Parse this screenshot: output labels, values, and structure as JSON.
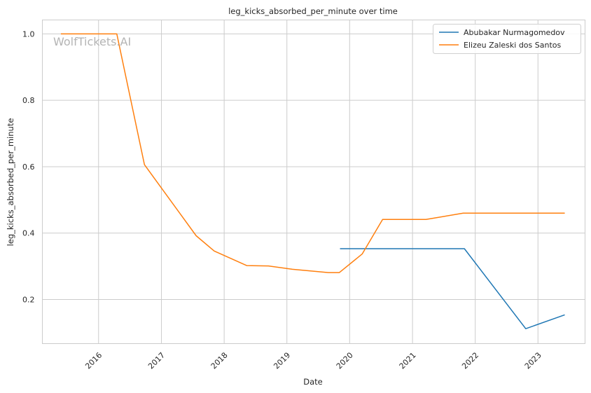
{
  "watermark": "WolfTickets.AI",
  "chart_data": {
    "type": "line",
    "title": "leg_kicks_absorbed_per_minute over time",
    "xlabel": "Date",
    "ylabel": "leg_kicks_absorbed_per_minute",
    "x_ticks": [
      "2016",
      "2017",
      "2018",
      "2019",
      "2020",
      "2021",
      "2022",
      "2023"
    ],
    "y_ticks": [
      "0.2",
      "0.4",
      "0.6",
      "0.8",
      "1.0"
    ],
    "xlim": [
      "2015-02-08",
      "2023-10-02"
    ],
    "ylim": [
      0.067,
      1.042
    ],
    "grid": true,
    "legend_position": "top-right",
    "series": [
      {
        "name": "Abubakar Nurmagomedov",
        "color": "#1f77b4",
        "points": [
          {
            "x": "2019-11-09",
            "y": 0.353
          },
          {
            "x": "2021-10-30",
            "y": 0.353
          },
          {
            "x": "2022-10-22",
            "y": 0.112
          },
          {
            "x": "2023-06-03",
            "y": 0.153
          }
        ]
      },
      {
        "name": "Elizeu Zaleski dos Santos",
        "color": "#ff7f0e",
        "points": [
          {
            "x": "2015-05-30",
            "y": 1.0
          },
          {
            "x": "2016-04-16",
            "y": 1.0
          },
          {
            "x": "2016-09-24",
            "y": 0.606
          },
          {
            "x": "2017-07-22",
            "y": 0.392
          },
          {
            "x": "2017-11-04",
            "y": 0.346
          },
          {
            "x": "2018-05-12",
            "y": 0.302
          },
          {
            "x": "2018-09-15",
            "y": 0.301
          },
          {
            "x": "2019-02-02",
            "y": 0.291
          },
          {
            "x": "2019-08-31",
            "y": 0.281
          },
          {
            "x": "2019-11-02",
            "y": 0.281
          },
          {
            "x": "2020-03-14",
            "y": 0.337
          },
          {
            "x": "2020-07-11",
            "y": 0.441
          },
          {
            "x": "2021-03-20",
            "y": 0.441
          },
          {
            "x": "2021-10-23",
            "y": 0.46
          },
          {
            "x": "2023-06-03",
            "y": 0.46
          }
        ]
      }
    ]
  }
}
